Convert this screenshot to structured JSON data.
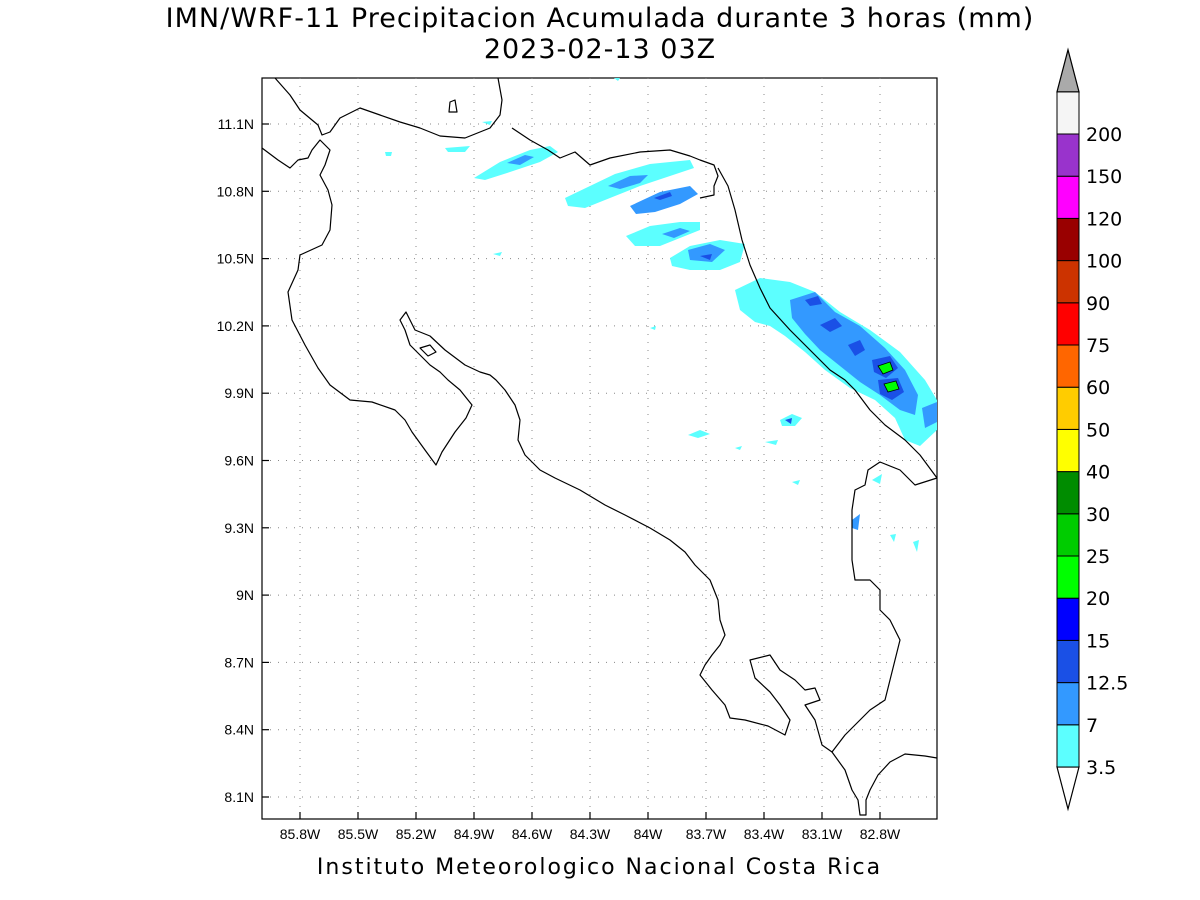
{
  "title": {
    "line1": "IMN/WRF-11 Precipitacion Acumulada durante 3 horas (mm)",
    "line2": "2023-02-13 03Z"
  },
  "footer": "Instituto Meteorologico Nacional Costa Rica",
  "axes": {
    "lat_ticks": [
      "11.1N",
      "10.8N",
      "10.5N",
      "10.2N",
      "9.9N",
      "9.6N",
      "9.3N",
      "9N",
      "8.7N",
      "8.4N",
      "8.1N"
    ],
    "lon_ticks": [
      "85.8W",
      "85.5W",
      "85.2W",
      "84.9W",
      "84.6W",
      "84.3W",
      "84W",
      "83.7W",
      "83.4W",
      "83.1W",
      "82.8W"
    ],
    "grid": true
  },
  "colorbar": {
    "levels": [
      "3.5",
      "7",
      "12.5",
      "15",
      "20",
      "25",
      "30",
      "40",
      "50",
      "60",
      "75",
      "90",
      "100",
      "120",
      "150",
      "200"
    ],
    "colors": [
      "#5cffff",
      "#3399ff",
      "#1a50e6",
      "#0000ff",
      "#00ff00",
      "#00cc00",
      "#008c00",
      "#ffff00",
      "#ffcc00",
      "#ff6600",
      "#ff0000",
      "#cc3300",
      "#990000",
      "#ff00ff",
      "#9933cc",
      "#f5f5f5",
      "#aaaaaa"
    ]
  }
}
